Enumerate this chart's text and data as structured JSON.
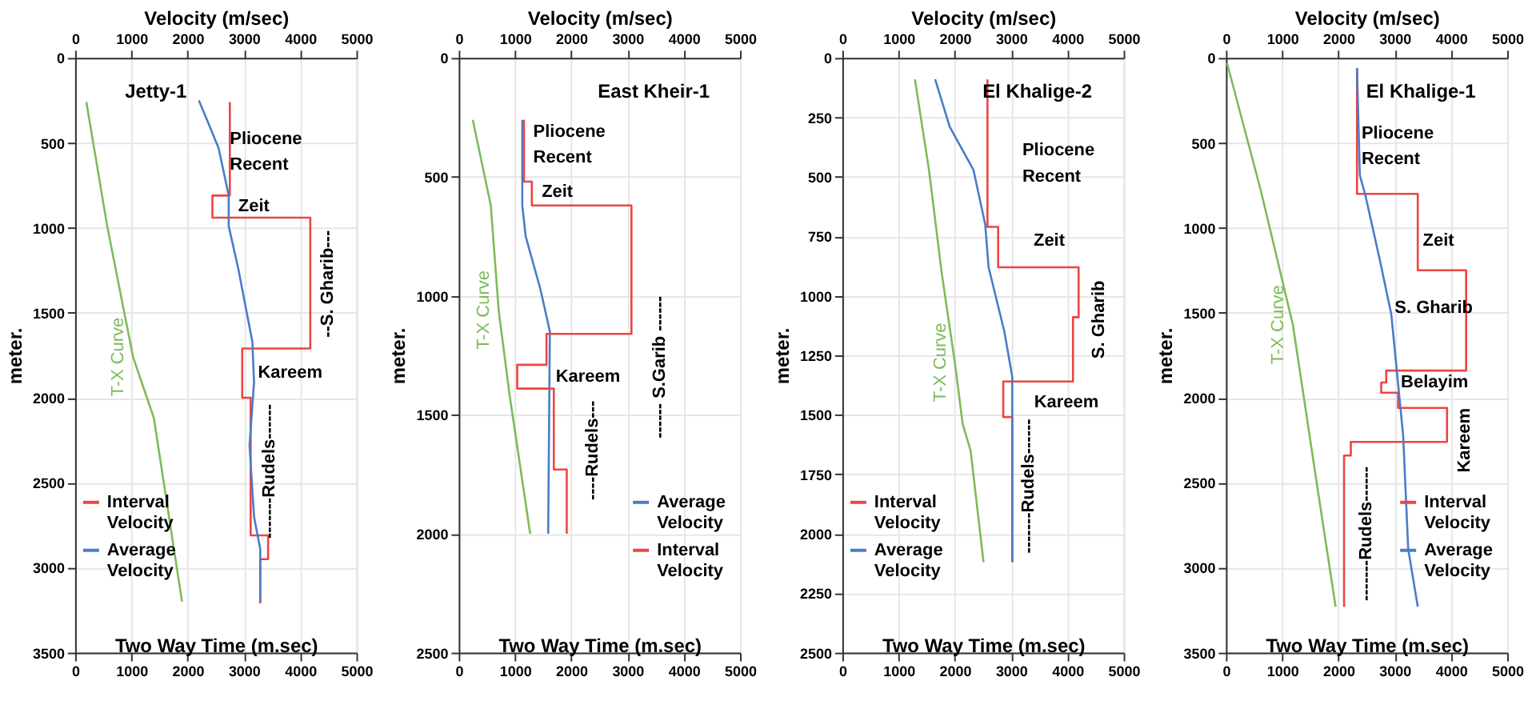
{
  "chart_data": [
    {
      "type": "line",
      "title": "Jetty-1",
      "xlabel": "Two Way Time (m.sec)",
      "x2label": "Velocity (m/sec)",
      "ylabel": "meter.",
      "xlim": [
        0,
        5000
      ],
      "xticks": [
        0,
        1000,
        2000,
        3000,
        4000,
        5000
      ],
      "x2lim": [
        0,
        5000
      ],
      "x2ticks": [
        0,
        1000,
        2000,
        3000,
        4000,
        5000
      ],
      "ylim": [
        3500,
        0
      ],
      "yticks": [
        0,
        500,
        1000,
        1500,
        2000,
        2500,
        3000,
        3500
      ],
      "grid": true,
      "legend": "bottom left",
      "line_style": "solid",
      "marker": "none",
      "series": [
        {
          "name": "T-X Curve",
          "color": "#7dbb5a",
          "x": [
            200,
            570,
            1030,
            1400,
            1900
          ],
          "values": [
            260,
            990,
            1760,
            2120,
            3200
          ]
        },
        {
          "name": "Interval Velocity",
          "color": "#ee4444",
          "axis": "x2",
          "x": [
            2750,
            2750,
            2440,
            2440,
            4180,
            4180,
            2970,
            2970,
            3120,
            3120,
            3430,
            3430,
            3290,
            3290
          ],
          "values": [
            260,
            810,
            810,
            940,
            940,
            1710,
            1710,
            2000,
            2000,
            2810,
            2810,
            2950,
            2950,
            3210
          ]
        },
        {
          "name": "Average Velocity",
          "color": "#4a7cc7",
          "axis": "x2",
          "x": [
            2200,
            2550,
            2730,
            2730,
            2900,
            3150,
            3180,
            3100,
            3180,
            3290,
            3290
          ],
          "values": [
            250,
            530,
            810,
            990,
            1240,
            1670,
            1910,
            2280,
            2700,
            2890,
            3200
          ]
        }
      ],
      "annotations": [
        "Pliocene",
        "Recent",
        "Zeit",
        "--S. Gharib---",
        "Kareem",
        "-------Rudels------"
      ]
    },
    {
      "type": "line",
      "title": "East Kheir-1",
      "xlabel": "Two Way Time (m.sec)",
      "x2label": "Velocity (m/sec)",
      "ylabel": "meter.",
      "xlim": [
        0,
        5000
      ],
      "xticks": [
        0,
        1000,
        2000,
        3000,
        4000,
        5000
      ],
      "x2lim": [
        0,
        5000
      ],
      "x2ticks": [
        0,
        1000,
        2000,
        3000,
        4000,
        5000
      ],
      "ylim": [
        2500,
        0
      ],
      "yticks": [
        0,
        500,
        1000,
        1500,
        2000,
        2500
      ],
      "grid": true,
      "legend": "bottom right",
      "line_style": "solid",
      "marker": "none",
      "series": [
        {
          "name": "T-X Curve",
          "color": "#7dbb5a",
          "x": [
            250,
            570,
            710,
            900,
            1270
          ],
          "values": [
            260,
            620,
            1060,
            1410,
            2000
          ]
        },
        {
          "name": "Average Velocity",
          "color": "#4a7cc7",
          "axis": "x2",
          "x": [
            1130,
            1130,
            1190,
            1450,
            1620,
            1590
          ],
          "values": [
            260,
            620,
            750,
            970,
            1150,
            2000
          ]
        },
        {
          "name": "Interval Velocity",
          "color": "#ee4444",
          "axis": "x2",
          "x": [
            1160,
            1160,
            1300,
            1300,
            3070,
            3070,
            1560,
            1560,
            1040,
            1040,
            1690,
            1690,
            1920,
            1920
          ],
          "values": [
            260,
            520,
            520,
            620,
            620,
            1160,
            1160,
            1290,
            1290,
            1390,
            1390,
            1730,
            1730,
            2000
          ]
        }
      ],
      "annotations": [
        "Pliocene",
        "Recent",
        "Zeit",
        "------ S.Garib ------",
        "Kareem",
        "----Rudels---"
      ]
    },
    {
      "type": "line",
      "title": "El Khalige-2",
      "xlabel": "Two Way Time (m.sec)",
      "x2label": "Velocity (m/sec)",
      "ylabel": "meter.",
      "xlim": [
        0,
        5000
      ],
      "xticks": [
        0,
        1000,
        2000,
        3000,
        4000,
        5000
      ],
      "x2lim": [
        0,
        5000
      ],
      "x2ticks": [
        0,
        1000,
        2000,
        3000,
        4000,
        5000
      ],
      "ylim": [
        2500,
        0
      ],
      "yticks": [
        0,
        250,
        500,
        750,
        1000,
        1250,
        1500,
        1750,
        2000,
        2250,
        2500
      ],
      "grid": true,
      "legend": "bottom left",
      "line_style": "solid",
      "marker": "none",
      "series": [
        {
          "name": "T-X Curve",
          "color": "#7dbb5a",
          "x": [
            1290,
            1540,
            1770,
            2000,
            2140,
            2280,
            2510
          ],
          "values": [
            90,
            470,
            910,
            1280,
            1540,
            1650,
            2120
          ]
        },
        {
          "name": "Interval Velocity",
          "color": "#ee4444",
          "axis": "x2",
          "x": [
            2580,
            2580,
            2770,
            2770,
            4200,
            4200,
            4100,
            4100,
            2860,
            2860,
            3020,
            3020
          ],
          "values": [
            90,
            710,
            710,
            880,
            880,
            1090,
            1090,
            1360,
            1360,
            1510,
            1510,
            2120
          ]
        },
        {
          "name": "Average Velocity",
          "color": "#4a7cc7",
          "axis": "x2",
          "x": [
            1650,
            1910,
            2330,
            2540,
            2600,
            2880,
            3020,
            3020
          ],
          "values": [
            90,
            290,
            470,
            700,
            880,
            1150,
            1340,
            2120
          ]
        }
      ],
      "annotations": [
        "Pliocene",
        "Recent",
        "Zeit",
        "S. Gharib",
        "Kareem",
        "-------Rudels------"
      ]
    },
    {
      "type": "line",
      "title": "El Khalige-1",
      "xlabel": "Two Way Time (m.sec)",
      "x2label": "Velocity (m/sec)",
      "ylabel": "meter.",
      "xlim": [
        0,
        5000
      ],
      "xticks": [
        0,
        1000,
        2000,
        3000,
        4000,
        5000
      ],
      "x2lim": [
        0,
        5000
      ],
      "x2ticks": [
        0,
        1000,
        2000,
        3000,
        4000,
        5000
      ],
      "ylim": [
        3500,
        0
      ],
      "yticks": [
        0,
        500,
        1000,
        1500,
        2000,
        2500,
        3000,
        3500
      ],
      "grid": true,
      "legend": "bottom right",
      "line_style": "solid",
      "marker": "none",
      "series": [
        {
          "name": "T-X Curve",
          "color": "#7dbb5a",
          "x": [
            20,
            620,
            1190,
            1650,
            1950
          ],
          "values": [
            30,
            780,
            1570,
            2580,
            3230
          ]
        },
        {
          "name": "Interval Velocity",
          "color": "#ee4444",
          "axis": "x2",
          "x": [
            2330,
            2330,
            3410,
            3410,
            4270,
            4270,
            2850,
            2850,
            2760,
            2760,
            3060,
            3060,
            3930,
            3930,
            2220,
            2220,
            2100,
            2100
          ],
          "values": [
            60,
            800,
            800,
            1250,
            1250,
            1840,
            1840,
            1910,
            1910,
            1970,
            1970,
            2060,
            2060,
            2260,
            2260,
            2340,
            2340,
            3230
          ]
        },
        {
          "name": "Average Velocity",
          "color": "#4a7cc7",
          "axis": "x2",
          "x": [
            2330,
            2380,
            2480,
            2730,
            2940,
            3040,
            3150,
            3240,
            3410
          ],
          "values": [
            60,
            690,
            810,
            1180,
            1510,
            1850,
            2220,
            2890,
            3230
          ]
        }
      ],
      "annotations": [
        "Pliocene",
        "Recent",
        "Zeit",
        "S. Gharib",
        "Belayim",
        "Kareem",
        "-------Rudels------"
      ]
    }
  ]
}
